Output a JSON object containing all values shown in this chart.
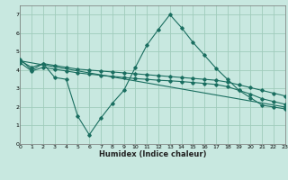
{
  "xlabel": "Humidex (Indice chaleur)",
  "xlim": [
    0,
    23
  ],
  "ylim": [
    0,
    7.5
  ],
  "xticks": [
    0,
    1,
    2,
    3,
    4,
    5,
    6,
    7,
    8,
    9,
    10,
    11,
    12,
    13,
    14,
    15,
    16,
    17,
    18,
    19,
    20,
    21,
    22,
    23
  ],
  "yticks": [
    0,
    1,
    2,
    3,
    4,
    5,
    6,
    7
  ],
  "bg_color": "#c8e8e0",
  "grid_color": "#a0ccbb",
  "line_color": "#1a6e60",
  "line1_x": [
    0,
    1,
    2,
    3,
    4,
    5,
    6,
    7,
    8,
    9,
    10,
    11,
    12,
    13,
    14,
    15,
    16,
    17,
    18,
    19,
    20,
    21,
    22,
    23
  ],
  "line1_y": [
    4.6,
    4.0,
    4.35,
    3.6,
    3.5,
    1.5,
    0.5,
    1.4,
    2.2,
    2.9,
    4.15,
    5.35,
    6.2,
    7.0,
    6.3,
    5.5,
    4.8,
    4.1,
    3.5,
    2.9,
    2.5,
    2.1,
    2.0,
    1.9
  ],
  "line2_x": [
    0,
    1,
    2,
    3,
    4,
    5,
    6,
    7,
    8,
    9,
    10,
    11,
    12,
    13,
    14,
    15,
    16,
    17,
    18,
    19,
    20,
    21,
    22,
    23
  ],
  "line2_y": [
    4.5,
    4.15,
    4.35,
    4.25,
    4.15,
    4.05,
    4.0,
    3.95,
    3.9,
    3.85,
    3.8,
    3.75,
    3.7,
    3.65,
    3.6,
    3.55,
    3.5,
    3.45,
    3.35,
    3.2,
    3.05,
    2.9,
    2.75,
    2.6
  ],
  "line3_x": [
    0,
    1,
    2,
    3,
    4,
    5,
    6,
    7,
    8,
    9,
    10,
    11,
    12,
    13,
    14,
    15,
    16,
    17,
    18,
    19,
    20,
    21,
    22,
    23
  ],
  "line3_y": [
    4.4,
    3.95,
    4.15,
    4.05,
    3.95,
    3.85,
    3.78,
    3.72,
    3.66,
    3.6,
    3.54,
    3.5,
    3.45,
    3.42,
    3.38,
    3.33,
    3.28,
    3.22,
    3.1,
    2.9,
    2.7,
    2.45,
    2.3,
    2.15
  ],
  "line4_x": [
    0,
    23
  ],
  "line4_y": [
    4.5,
    2.0
  ]
}
